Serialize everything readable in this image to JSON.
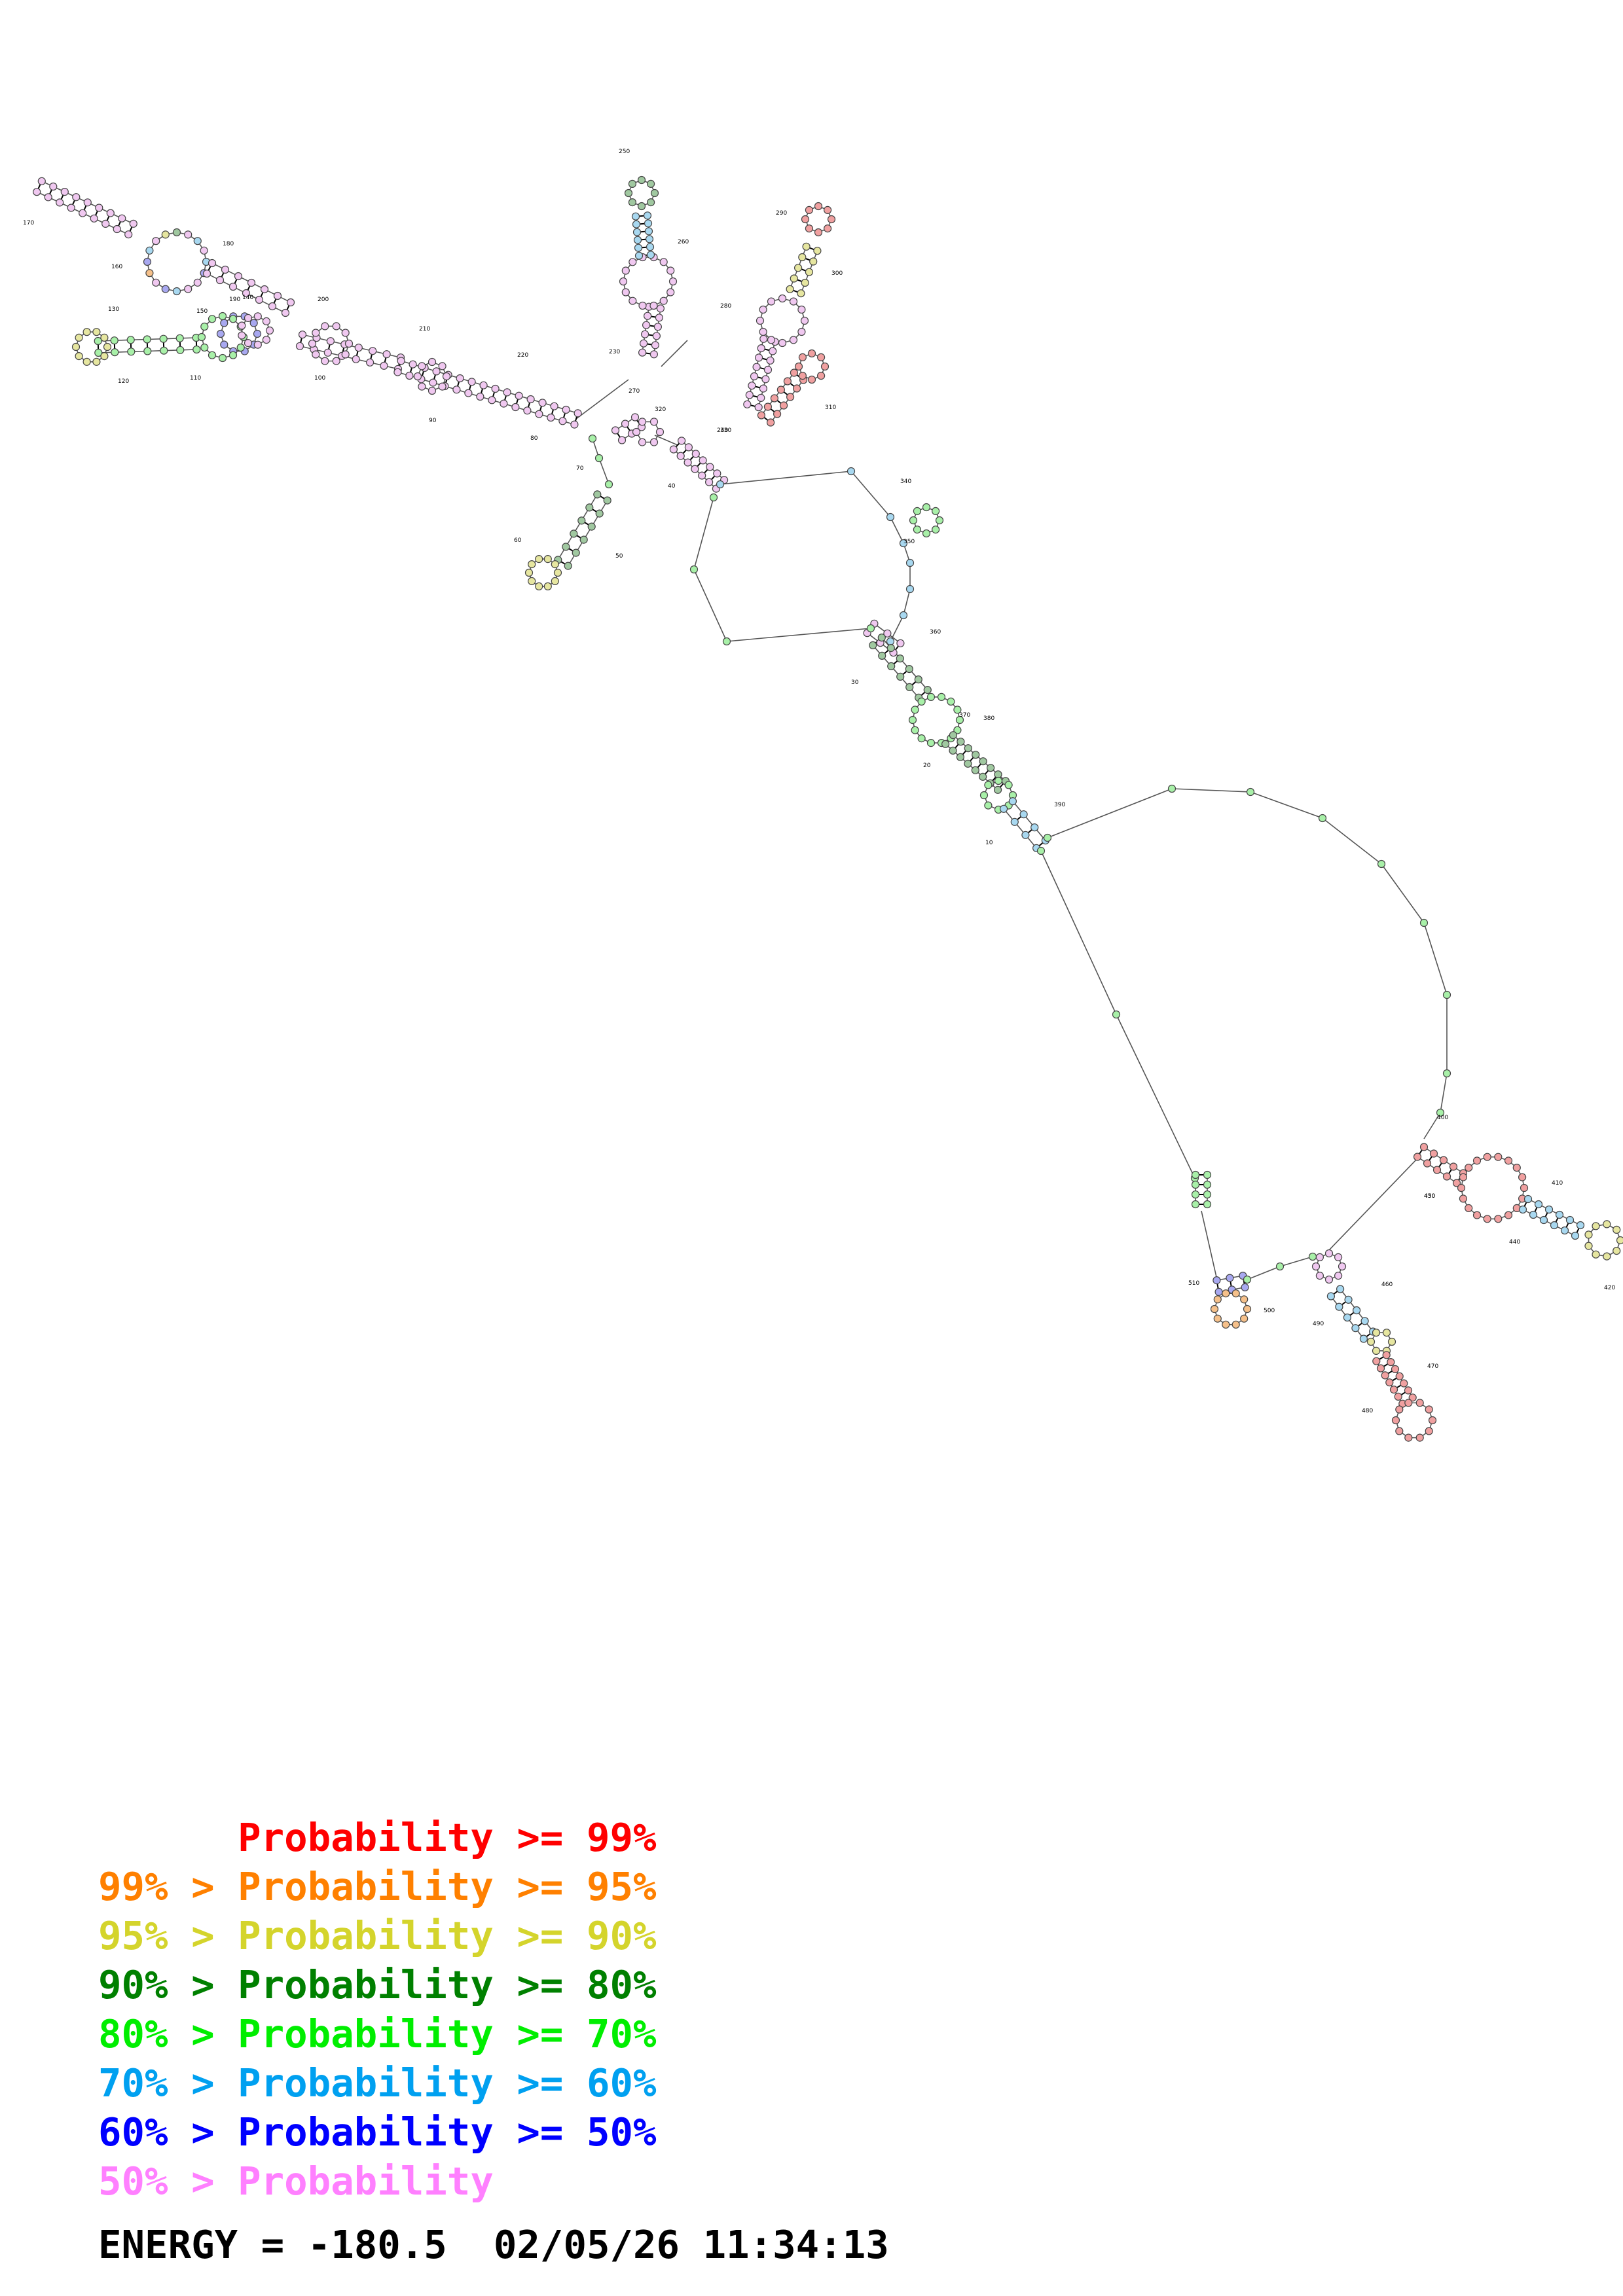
{
  "position_labels": [
    "10",
    "20",
    "30",
    "40",
    "50",
    "60",
    "70",
    "80",
    "90",
    "100",
    "110",
    "120",
    "130",
    "140",
    "150",
    "160",
    "170",
    "180",
    "190",
    "200",
    "210",
    "220",
    "230",
    "240",
    "250",
    "260",
    "270",
    "280",
    "290",
    "300",
    "310",
    "320",
    "330",
    "340",
    "350",
    "360",
    "370",
    "380",
    "390",
    "400",
    "410",
    "420",
    "430",
    "440",
    "450",
    "460",
    "470",
    "480",
    "490",
    "500",
    "510"
  ],
  "legend": [
    {
      "prefix": "",
      "label": "Probability",
      "suffix": ">= 99%",
      "color": "#ff0000"
    },
    {
      "prefix": "99% >",
      "label": "Probability",
      "suffix": ">= 95%",
      "color": "#ff8000"
    },
    {
      "prefix": "95% >",
      "label": "Probability",
      "suffix": ">= 90%",
      "color": "#d4d42c"
    },
    {
      "prefix": "90% >",
      "label": "Probability",
      "suffix": ">= 80%",
      "color": "#008000"
    },
    {
      "prefix": "80% >",
      "label": "Probability",
      "suffix": ">= 70%",
      "color": "#00ee00"
    },
    {
      "prefix": "70% >",
      "label": "Probability",
      "suffix": ">= 60%",
      "color": "#00a0f0"
    },
    {
      "prefix": "60% >",
      "label": "Probability",
      "suffix": ">= 50%",
      "color": "#0000ff"
    },
    {
      "prefix": "50% >",
      "label": "Probability",
      "suffix": "",
      "color": "#ff80ff"
    }
  ],
  "footer": {
    "energy": "ENERGY = -180.5",
    "timestamp": "02/05/26 11:34:13"
  },
  "node_colors": {
    "red": "#f0a0a0",
    "orange": "#f5c08a",
    "yellow": "#e6e6a0",
    "dark_green": "#a0c8a0",
    "green": "#a8f0a8",
    "light_blue": "#a8d8f0",
    "blue": "#a8a8f0",
    "pink": "#f0c8f0"
  }
}
